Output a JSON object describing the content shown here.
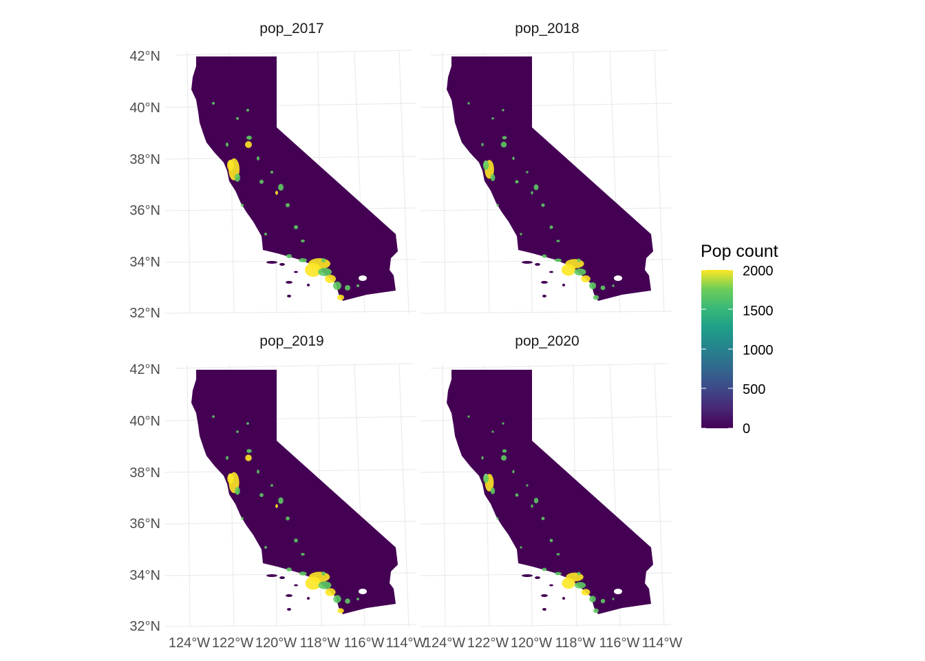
{
  "chart_data": {
    "type": "heatmap",
    "title": "",
    "facets": [
      {
        "label": "pop_2017"
      },
      {
        "label": "pop_2018"
      },
      {
        "label": "pop_2019"
      },
      {
        "label": "pop_2020"
      }
    ],
    "y_ticks": [
      "42°N",
      "40°N",
      "38°N",
      "36°N",
      "34°N",
      "32°N"
    ],
    "x_ticks": [
      "124°W",
      "122°W",
      "120°W",
      "118°W",
      "116°W",
      "114°W"
    ],
    "x_tick_values": [
      -124,
      -122,
      -120,
      -118,
      -116,
      -114
    ],
    "y_tick_values": [
      42,
      40,
      38,
      36,
      34,
      32
    ],
    "xlim": [
      -124.4,
      -114.1
    ],
    "ylim": [
      32.5,
      42.0
    ],
    "legend": {
      "title": "Pop count",
      "labels": [
        "2000",
        "1500",
        "1000",
        "500",
        "0"
      ],
      "values": [
        2000,
        1500,
        1000,
        500,
        0
      ],
      "placement": "right",
      "colormap": "viridis",
      "colors": [
        "#fde725",
        "#5ec962",
        "#21918c",
        "#3b528b",
        "#440154"
      ]
    },
    "background_color": "#440154",
    "grid": true
  }
}
